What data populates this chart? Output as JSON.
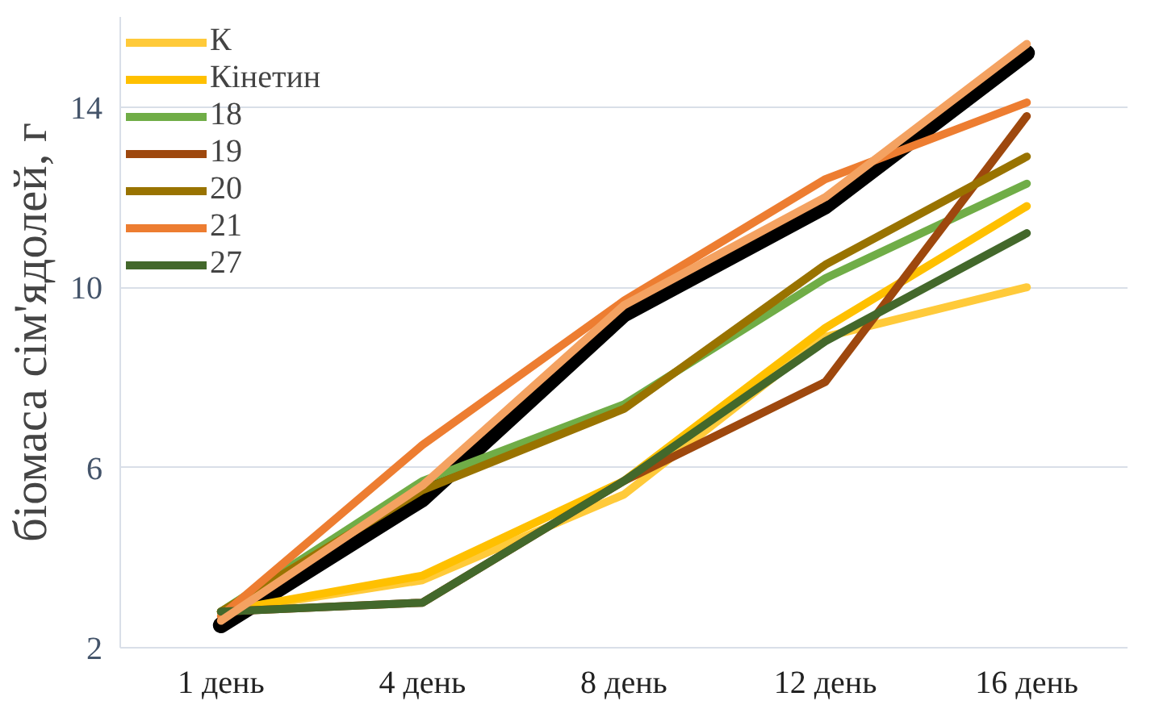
{
  "chart_data": {
    "type": "line",
    "ylabel": "біомаса сім'ядолей, г",
    "categories": [
      "1 день",
      "4 день",
      "8 день",
      "12 день",
      "16 день"
    ],
    "ylim": [
      2,
      16
    ],
    "yticks": [
      2,
      6,
      10,
      14
    ],
    "grid": "y",
    "legend": "top left",
    "marker": "none",
    "line_style": "solid",
    "series": [
      {
        "color": "#000000",
        "values": [
          2.5,
          5.3,
          9.4,
          11.8,
          15.2
        ]
      },
      {
        "name": "К",
        "color": "#ffca3a",
        "values": [
          2.8,
          3.5,
          5.4,
          8.9,
          10.0
        ]
      },
      {
        "name": "Кінетин",
        "color": "#ffc000",
        "values": [
          2.8,
          3.6,
          5.7,
          9.1,
          11.8
        ]
      },
      {
        "name": "18",
        "color": "#70ad47",
        "values": [
          2.8,
          5.7,
          7.4,
          10.2,
          12.3
        ]
      },
      {
        "name": "19",
        "color": "#9e480e",
        "values": [
          2.8,
          3.0,
          5.7,
          7.9,
          13.8
        ]
      },
      {
        "name": "20",
        "color": "#997300",
        "values": [
          2.8,
          5.5,
          7.3,
          10.5,
          12.9
        ]
      },
      {
        "name": "21",
        "color": "#ed7d31",
        "values": [
          2.7,
          6.5,
          9.7,
          12.4,
          14.1
        ]
      },
      {
        "name": "27",
        "color": "#43682b",
        "values": [
          2.8,
          3.0,
          5.7,
          8.8,
          11.2
        ]
      },
      {
        "color": "#f4a261",
        "values": [
          2.6,
          5.6,
          9.6,
          12.0,
          15.4
        ]
      }
    ]
  }
}
